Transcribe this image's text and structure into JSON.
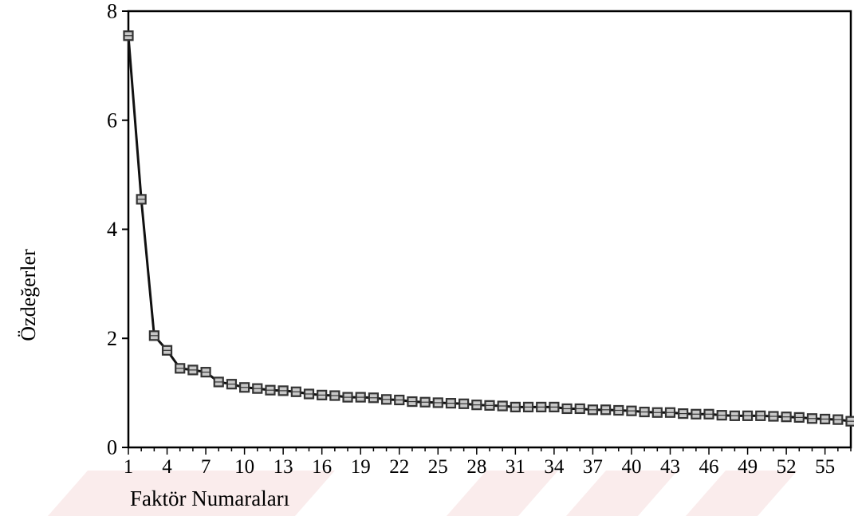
{
  "chart_data": {
    "type": "line",
    "title": "",
    "xlabel": "Faktör Numaraları",
    "ylabel": "Özdeğerler",
    "xlim": [
      1,
      57
    ],
    "ylim": [
      0,
      8
    ],
    "xticks": [
      1,
      4,
      7,
      10,
      13,
      16,
      19,
      22,
      25,
      28,
      31,
      34,
      37,
      40,
      43,
      46,
      49,
      52,
      55
    ],
    "yticks": [
      0,
      2,
      4,
      6,
      8
    ],
    "grid": false,
    "legend": "none",
    "marker": "square",
    "series": [
      {
        "x": [
          1,
          2,
          3,
          4,
          5,
          6,
          7,
          8,
          9,
          10,
          11,
          12,
          13,
          14,
          15,
          16,
          17,
          18,
          19,
          20,
          21,
          22,
          23,
          24,
          25,
          26,
          27,
          28,
          29,
          30,
          31,
          32,
          33,
          34,
          35,
          36,
          37,
          38,
          39,
          40,
          41,
          42,
          43,
          44,
          45,
          46,
          47,
          48,
          49,
          50,
          51,
          52,
          53,
          54,
          55,
          56,
          57
        ],
        "values": [
          7.55,
          4.55,
          2.05,
          1.78,
          1.45,
          1.42,
          1.38,
          1.2,
          1.16,
          1.1,
          1.08,
          1.05,
          1.04,
          1.02,
          0.98,
          0.96,
          0.95,
          0.92,
          0.92,
          0.91,
          0.88,
          0.87,
          0.84,
          0.83,
          0.82,
          0.81,
          0.8,
          0.78,
          0.77,
          0.76,
          0.74,
          0.74,
          0.74,
          0.74,
          0.71,
          0.71,
          0.69,
          0.69,
          0.68,
          0.67,
          0.65,
          0.64,
          0.64,
          0.62,
          0.61,
          0.61,
          0.59,
          0.58,
          0.58,
          0.58,
          0.57,
          0.56,
          0.55,
          0.53,
          0.52,
          0.51,
          0.48
        ]
      }
    ]
  },
  "colors": {
    "line": "#111111",
    "marker_edge": "#333333",
    "marker_fill": "#c8c8c8",
    "watermark": "#f3d6d6"
  }
}
